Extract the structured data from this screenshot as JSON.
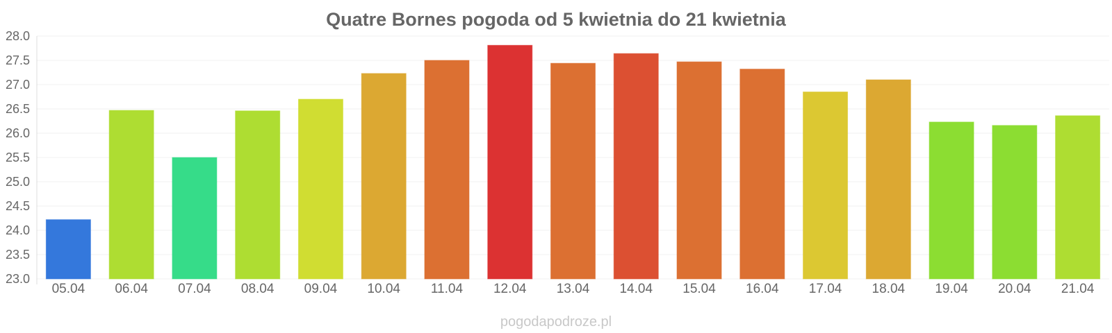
{
  "chart_data": {
    "type": "bar",
    "title": "Quatre Bornes pogoda od 5 kwietnia do 21 kwietnia",
    "xlabel": "",
    "ylabel": "",
    "ylim": [
      23.0,
      28.0
    ],
    "yticks": [
      "23.0",
      "23.5",
      "24.0",
      "24.5",
      "25.0",
      "25.5",
      "26.0",
      "26.5",
      "27.0",
      "27.5",
      "28.0"
    ],
    "grid": true,
    "categories": [
      "05.04",
      "06.04",
      "07.04",
      "08.04",
      "09.04",
      "10.04",
      "11.04",
      "12.04",
      "13.04",
      "14.04",
      "15.04",
      "16.04",
      "17.04",
      "18.04",
      "19.04",
      "20.04",
      "21.04"
    ],
    "values": [
      24.22,
      26.47,
      25.5,
      26.46,
      26.7,
      27.23,
      27.5,
      27.81,
      27.44,
      27.64,
      27.47,
      27.32,
      26.85,
      27.1,
      26.23,
      26.16,
      26.36
    ],
    "colors": [
      "#3478dc",
      "#aedd32",
      "#36dc89",
      "#aedd32",
      "#d0dd32",
      "#dca832",
      "#dc7032",
      "#dc3232",
      "#dc7032",
      "#dc5032",
      "#dc7032",
      "#dc7032",
      "#dcc832",
      "#dca832",
      "#8cdd32",
      "#8cdd32",
      "#aedd32"
    ]
  },
  "watermark": "pogodapodroze.pl"
}
